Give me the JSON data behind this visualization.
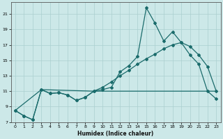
{
  "xlabel": "Humidex (Indice chaleur)",
  "bg_color": "#cce8e8",
  "grid_color": "#aacfcf",
  "line_color": "#1a6b6b",
  "xlim": [
    -0.5,
    23.5
  ],
  "ylim": [
    7,
    22.5
  ],
  "xticks": [
    0,
    1,
    2,
    3,
    4,
    5,
    6,
    7,
    8,
    9,
    10,
    11,
    12,
    13,
    14,
    15,
    16,
    17,
    18,
    19,
    20,
    21,
    22,
    23
  ],
  "yticks": [
    7,
    9,
    11,
    13,
    15,
    17,
    19,
    21
  ],
  "line1_x": [
    0,
    1,
    2,
    3,
    4,
    5,
    6,
    7,
    8,
    9,
    10,
    11,
    12,
    13,
    14,
    15,
    16,
    17,
    18,
    19,
    20,
    21,
    22,
    23
  ],
  "line1_y": [
    8.5,
    7.8,
    7.3,
    11.2,
    10.7,
    10.8,
    10.5,
    9.8,
    10.2,
    11.0,
    11.2,
    11.5,
    13.5,
    14.3,
    15.5,
    21.8,
    19.8,
    17.5,
    18.7,
    17.3,
    15.7,
    14.5,
    11.0,
    10.0
  ],
  "line2_x": [
    0,
    1,
    2,
    3,
    4,
    5,
    6,
    7,
    8,
    9,
    10,
    11,
    12,
    13,
    14,
    15,
    16,
    17,
    18,
    19,
    20,
    21,
    22,
    23
  ],
  "line2_y": [
    8.5,
    7.8,
    7.3,
    11.2,
    10.7,
    10.8,
    10.5,
    9.8,
    10.2,
    11.0,
    11.5,
    12.2,
    13.0,
    13.7,
    14.5,
    15.2,
    15.8,
    16.5,
    17.0,
    17.3,
    16.8,
    15.7,
    14.2,
    11.0
  ],
  "line3_x": [
    0,
    3,
    9,
    22,
    23
  ],
  "line3_y": [
    8.5,
    11.2,
    11.0,
    11.0,
    11.0
  ]
}
